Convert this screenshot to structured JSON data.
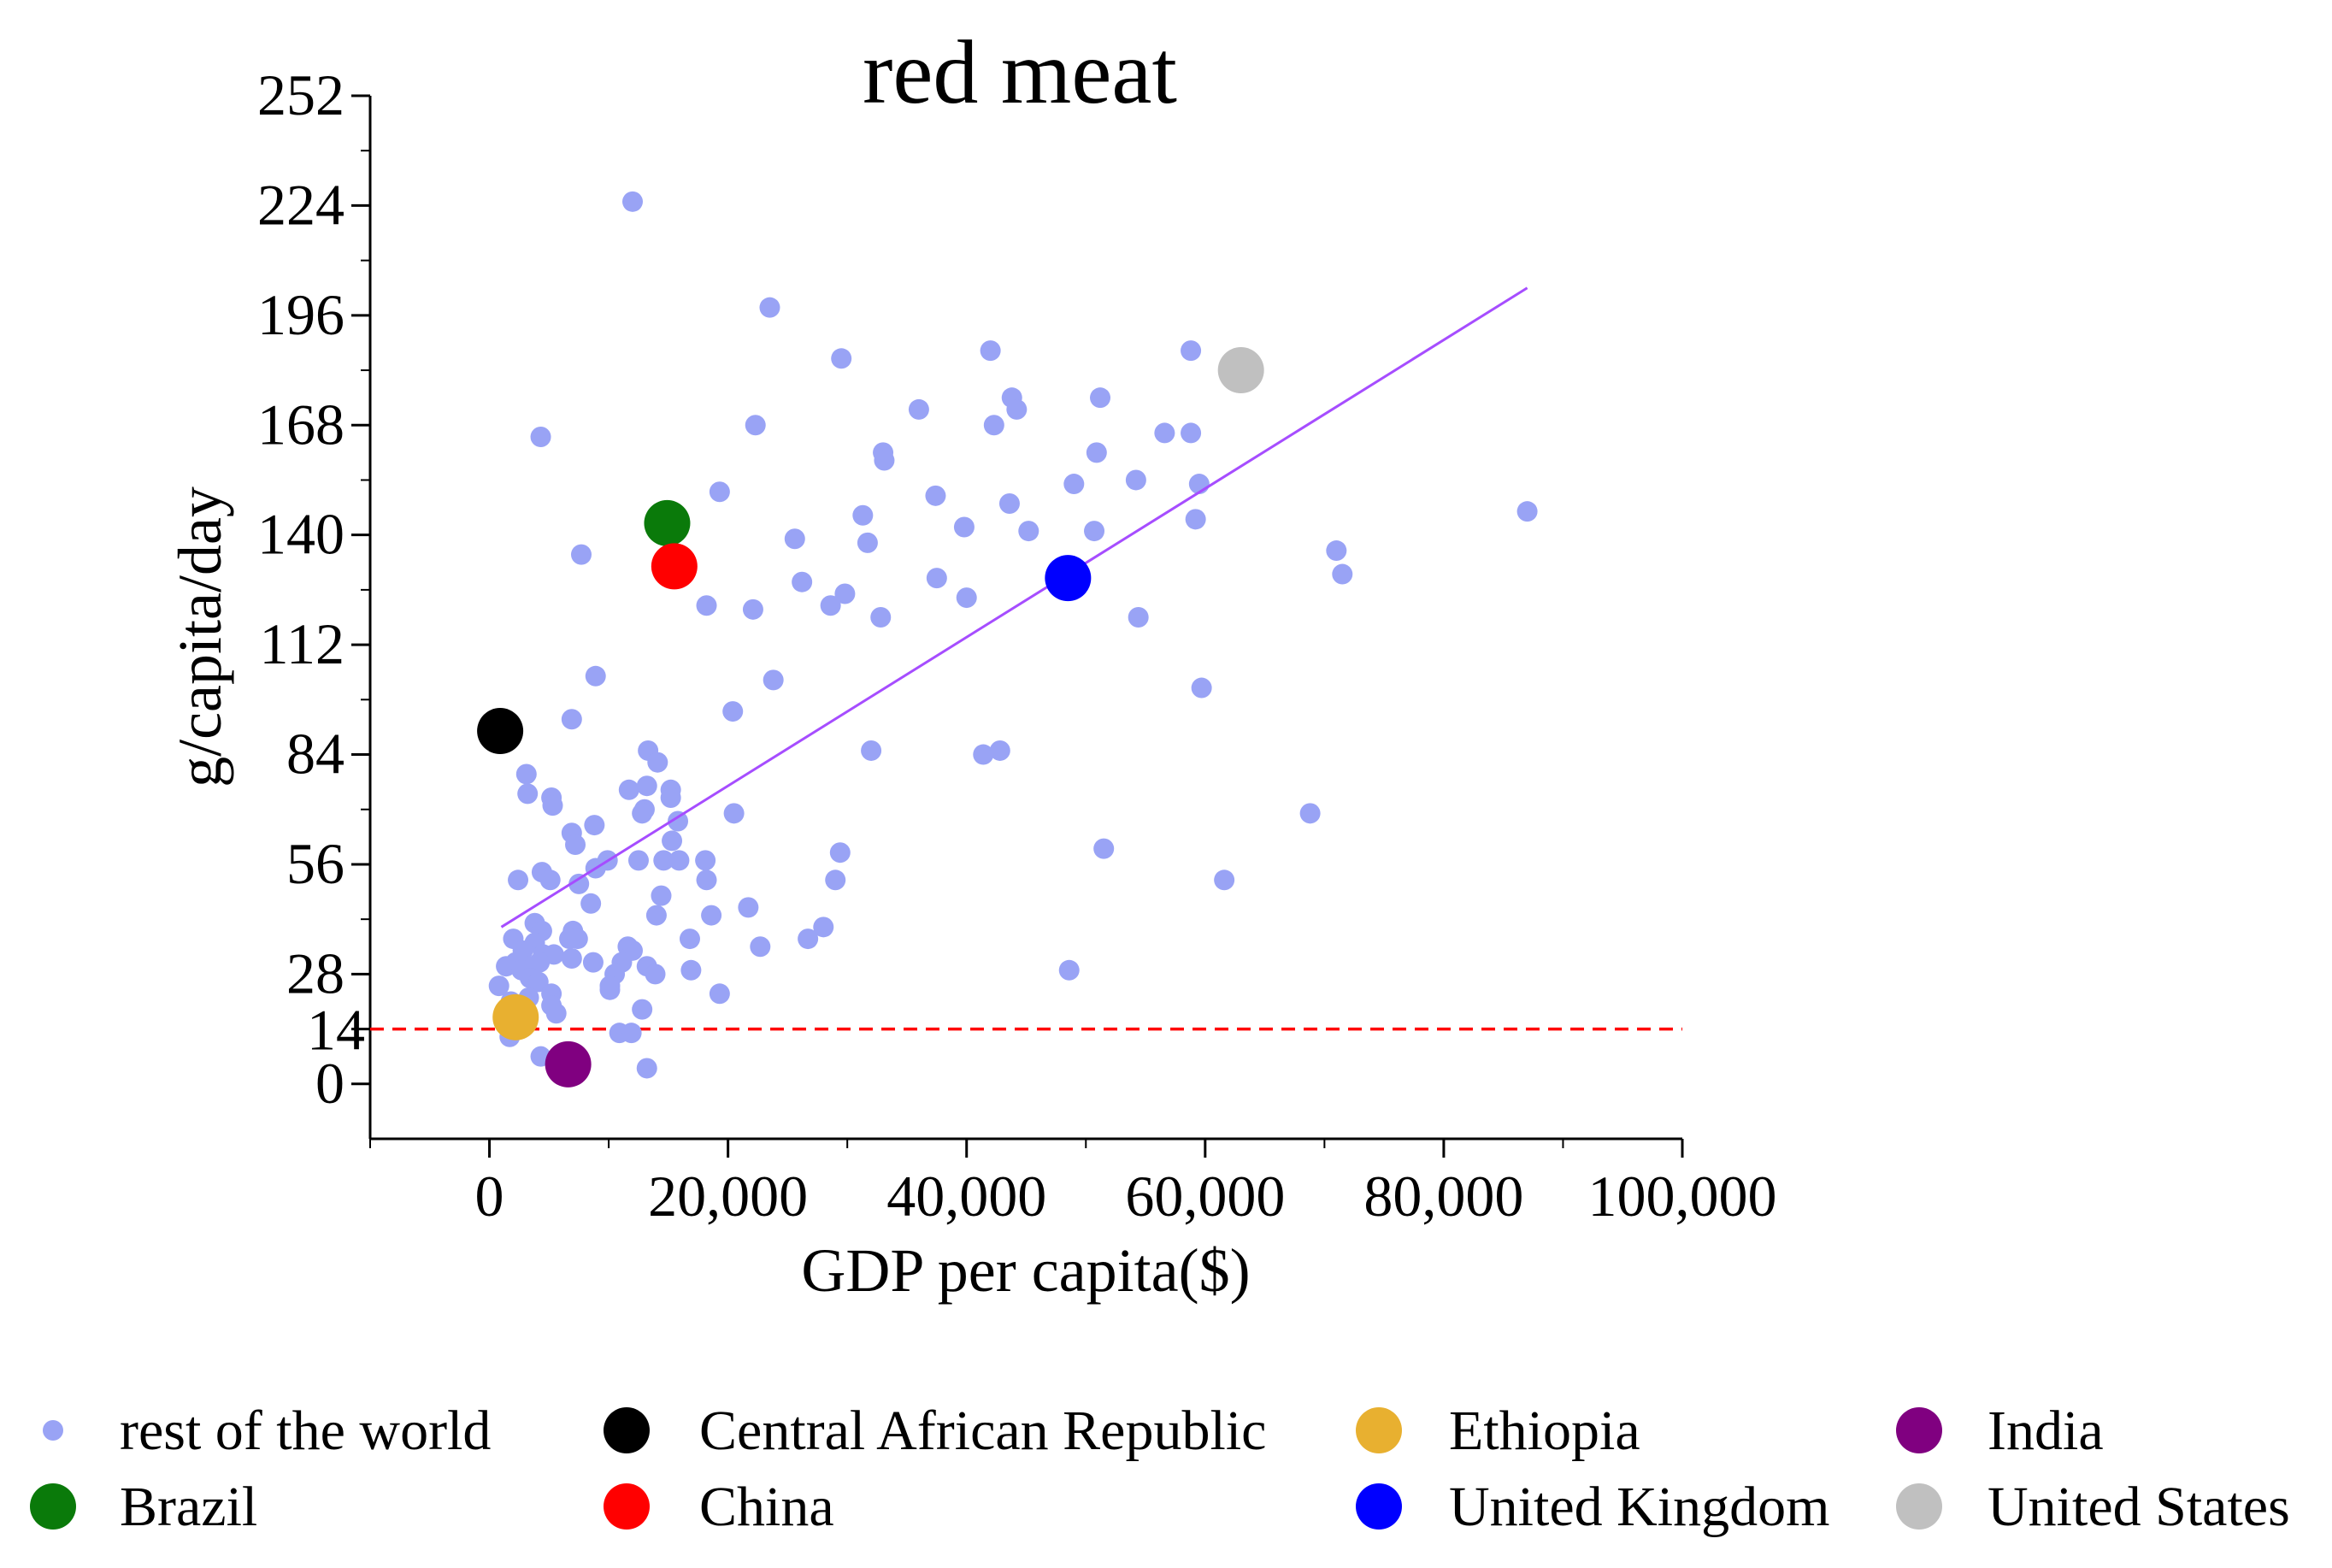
{
  "chart_data": {
    "type": "scatter",
    "title": "red meat",
    "xlabel": "GDP per capita($)",
    "ylabel": "g/capita/day",
    "xlim": [
      -10000,
      100000
    ],
    "ylim": [
      -14,
      252
    ],
    "x_ticks": [
      0,
      20000,
      40000,
      60000,
      80000,
      100000
    ],
    "x_tick_labels": [
      "0",
      "20,000",
      "40,000",
      "60,000",
      "80,000",
      "100,000"
    ],
    "y_ticks": [
      0,
      14,
      28,
      56,
      84,
      112,
      140,
      168,
      196,
      224,
      252
    ],
    "y_tick_labels": [
      "0",
      "14",
      "28",
      "56",
      "84",
      "112",
      "140",
      "168",
      "196",
      "224",
      "252"
    ],
    "grid": false,
    "legend_position": "bottom",
    "series": [
      {
        "name": "rest of the world",
        "color": "#99a3f5",
        "marker": "small",
        "points": [
          [
            12000,
            225
          ],
          [
            23500,
            198
          ],
          [
            29500,
            185
          ],
          [
            42000,
            187
          ],
          [
            58800,
            187
          ],
          [
            36000,
            172
          ],
          [
            43800,
            175
          ],
          [
            44200,
            172
          ],
          [
            51200,
            175
          ],
          [
            22300,
            168
          ],
          [
            42300,
            168
          ],
          [
            4300,
            165
          ],
          [
            56600,
            166
          ],
          [
            58800,
            166
          ],
          [
            33000,
            161
          ],
          [
            33100,
            159
          ],
          [
            50900,
            161
          ],
          [
            19300,
            151
          ],
          [
            37400,
            150
          ],
          [
            49000,
            153
          ],
          [
            54200,
            154
          ],
          [
            59500,
            153
          ],
          [
            31300,
            145
          ],
          [
            43600,
            148
          ],
          [
            59200,
            144
          ],
          [
            87000,
            146
          ],
          [
            39800,
            142
          ],
          [
            45200,
            141
          ],
          [
            50700,
            141
          ],
          [
            25600,
            139
          ],
          [
            31700,
            138
          ],
          [
            7700,
            135
          ],
          [
            71000,
            136
          ],
          [
            37500,
            129
          ],
          [
            26200,
            128
          ],
          [
            71500,
            130
          ],
          [
            29800,
            125
          ],
          [
            40000,
            124
          ],
          [
            28600,
            122
          ],
          [
            18200,
            122
          ],
          [
            22100,
            121
          ],
          [
            32800,
            119
          ],
          [
            54400,
            119
          ],
          [
            8900,
            104
          ],
          [
            23800,
            103
          ],
          [
            59700,
            101
          ],
          [
            20400,
            95
          ],
          [
            6900,
            93
          ],
          [
            32000,
            85
          ],
          [
            13300,
            85
          ],
          [
            41400,
            84
          ],
          [
            42800,
            85
          ],
          [
            14100,
            82
          ],
          [
            3100,
            79
          ],
          [
            11700,
            75
          ],
          [
            13200,
            76
          ],
          [
            3200,
            74
          ],
          [
            5200,
            73
          ],
          [
            15200,
            75
          ],
          [
            15200,
            73
          ],
          [
            5300,
            71
          ],
          [
            13000,
            70
          ],
          [
            12800,
            69
          ],
          [
            20500,
            69
          ],
          [
            68800,
            69
          ],
          [
            15800,
            67
          ],
          [
            8800,
            66
          ],
          [
            6900,
            64
          ],
          [
            15300,
            62
          ],
          [
            7200,
            61
          ],
          [
            51500,
            60
          ],
          [
            29400,
            59
          ],
          [
            9900,
            57
          ],
          [
            12500,
            57
          ],
          [
            14600,
            57
          ],
          [
            15900,
            57
          ],
          [
            18100,
            57
          ],
          [
            8900,
            55
          ],
          [
            4400,
            54
          ],
          [
            5100,
            52
          ],
          [
            2400,
            52
          ],
          [
            29000,
            52
          ],
          [
            7500,
            51
          ],
          [
            18200,
            52
          ],
          [
            61600,
            52
          ],
          [
            14400,
            48
          ],
          [
            8500,
            46
          ],
          [
            21700,
            45
          ],
          [
            14000,
            43
          ],
          [
            18600,
            43
          ],
          [
            3800,
            41
          ],
          [
            4400,
            39
          ],
          [
            7000,
            39
          ],
          [
            2000,
            37
          ],
          [
            6700,
            37
          ],
          [
            28000,
            40
          ],
          [
            16800,
            37
          ],
          [
            26700,
            37
          ],
          [
            3800,
            36
          ],
          [
            7400,
            37
          ],
          [
            11600,
            35
          ],
          [
            22700,
            35
          ],
          [
            2800,
            34
          ],
          [
            4500,
            33
          ],
          [
            5400,
            33
          ],
          [
            12000,
            34
          ],
          [
            2200,
            31
          ],
          [
            3300,
            30
          ],
          [
            4200,
            31
          ],
          [
            6900,
            32
          ],
          [
            8700,
            31
          ],
          [
            11100,
            31
          ],
          [
            13200,
            30
          ],
          [
            1400,
            30
          ],
          [
            2700,
            29
          ],
          [
            10500,
            28
          ],
          [
            13900,
            28
          ],
          [
            16900,
            29
          ],
          [
            48600,
            29
          ],
          [
            800,
            25
          ],
          [
            3400,
            27
          ],
          [
            4100,
            26
          ],
          [
            10100,
            25
          ],
          [
            5200,
            23
          ],
          [
            10100,
            24
          ],
          [
            19300,
            23
          ],
          [
            1800,
            21
          ],
          [
            5200,
            20
          ],
          [
            2400,
            19
          ],
          [
            12800,
            19
          ],
          [
            5600,
            18
          ],
          [
            2900,
            16
          ],
          [
            10900,
            13
          ],
          [
            11900,
            13
          ],
          [
            1700,
            12
          ],
          [
            4300,
            7
          ],
          [
            13200,
            4
          ],
          [
            2300,
            15
          ],
          [
            3300,
            22
          ]
        ]
      },
      {
        "name": "Central African Republic",
        "color": "#000000",
        "marker": "large",
        "points": [
          [
            900,
            90
          ]
        ]
      },
      {
        "name": "Ethiopia",
        "color": "#e8b030",
        "marker": "large",
        "points": [
          [
            2200,
            17
          ]
        ]
      },
      {
        "name": "India",
        "color": "#800080",
        "marker": "large",
        "points": [
          [
            6600,
            5
          ]
        ]
      },
      {
        "name": "Brazil",
        "color": "#0a7a0a",
        "marker": "large",
        "points": [
          [
            14900,
            143
          ]
        ]
      },
      {
        "name": "China",
        "color": "#ff0000",
        "marker": "large",
        "points": [
          [
            15500,
            132
          ]
        ]
      },
      {
        "name": "United Kingdom",
        "color": "#0000ff",
        "marker": "large",
        "points": [
          [
            48500,
            129
          ]
        ]
      },
      {
        "name": "United States",
        "color": "#c0c0c0",
        "marker": "large",
        "points": [
          [
            63000,
            182
          ]
        ]
      }
    ],
    "trendline": {
      "color": "#a64dff",
      "x": [
        1000,
        87000
      ],
      "y": [
        40,
        203
      ]
    },
    "reference_line": {
      "y": 14,
      "color": "#ff0000",
      "style": "dashed"
    }
  }
}
